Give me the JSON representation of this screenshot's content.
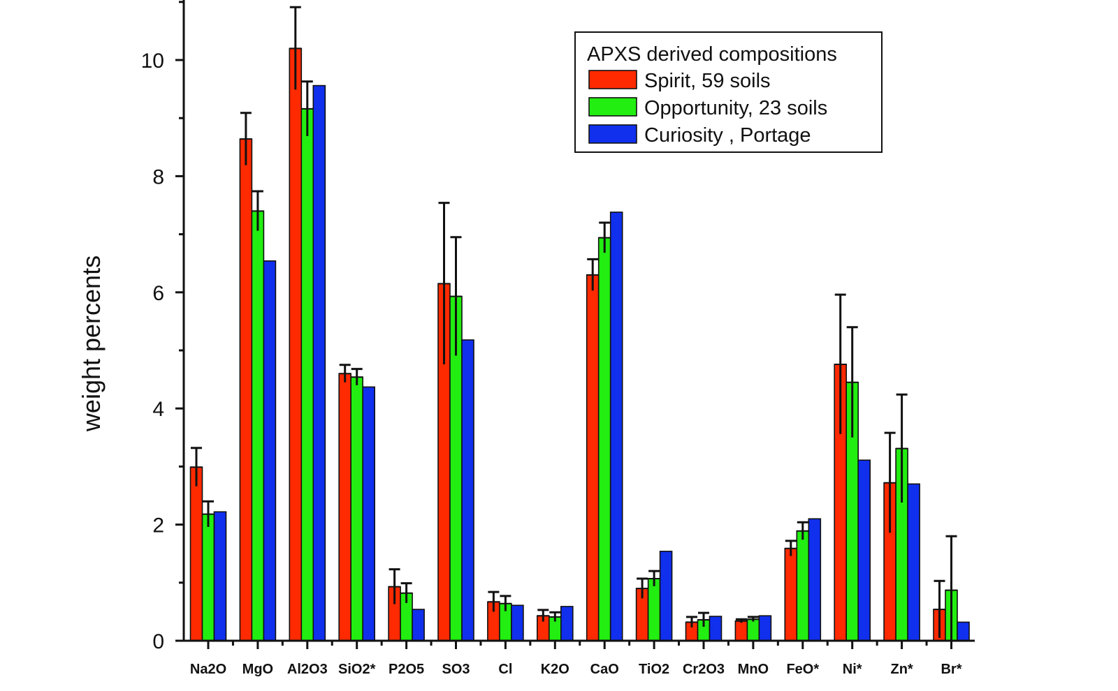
{
  "chart_data": {
    "type": "bar",
    "title": "",
    "xlabel": "",
    "ylabel": "weight percents",
    "ylim": [
      0,
      11
    ],
    "yticks": [
      0,
      2,
      4,
      6,
      8,
      10
    ],
    "grid": false,
    "legend_title": "APXS derived compositions",
    "legend_position": "top-right",
    "categories": [
      "Na2O",
      "MgO",
      "Al2O3",
      "SiO2*",
      "P2O5",
      "SO3",
      "Cl",
      "K2O",
      "CaO",
      "TiO2",
      "Cr2O3",
      "MnO",
      "FeO*",
      "Ni*",
      "Zn*",
      "Br*"
    ],
    "series": [
      {
        "name": "Spirit, 59 soils",
        "color": "#ff2a00",
        "values": [
          2.99,
          8.64,
          10.2,
          4.6,
          0.93,
          6.15,
          0.67,
          0.43,
          6.3,
          0.9,
          0.32,
          0.34,
          1.59,
          4.76,
          2.72,
          0.54
        ],
        "errors": [
          0.33,
          0.45,
          0.71,
          0.15,
          0.3,
          1.39,
          0.17,
          0.1,
          0.27,
          0.17,
          0.09,
          0.03,
          0.13,
          1.2,
          0.86,
          0.49
        ]
      },
      {
        "name": "Opportunity, 23 soils",
        "color": "#22ee11",
        "values": [
          2.18,
          7.4,
          9.16,
          4.54,
          0.82,
          5.93,
          0.64,
          0.41,
          6.94,
          1.07,
          0.36,
          0.37,
          1.89,
          4.45,
          3.31,
          0.87
        ],
        "errors": [
          0.22,
          0.34,
          0.47,
          0.14,
          0.17,
          1.02,
          0.13,
          0.08,
          0.26,
          0.13,
          0.12,
          0.04,
          0.15,
          0.95,
          0.93,
          0.93
        ]
      },
      {
        "name": "Curiosity , Portage",
        "color": "#1030ee",
        "values": [
          2.22,
          6.54,
          9.56,
          4.37,
          0.54,
          5.18,
          0.61,
          0.59,
          7.38,
          1.54,
          0.42,
          0.43,
          2.1,
          3.11,
          2.7,
          0.32
        ],
        "errors": null
      }
    ]
  }
}
